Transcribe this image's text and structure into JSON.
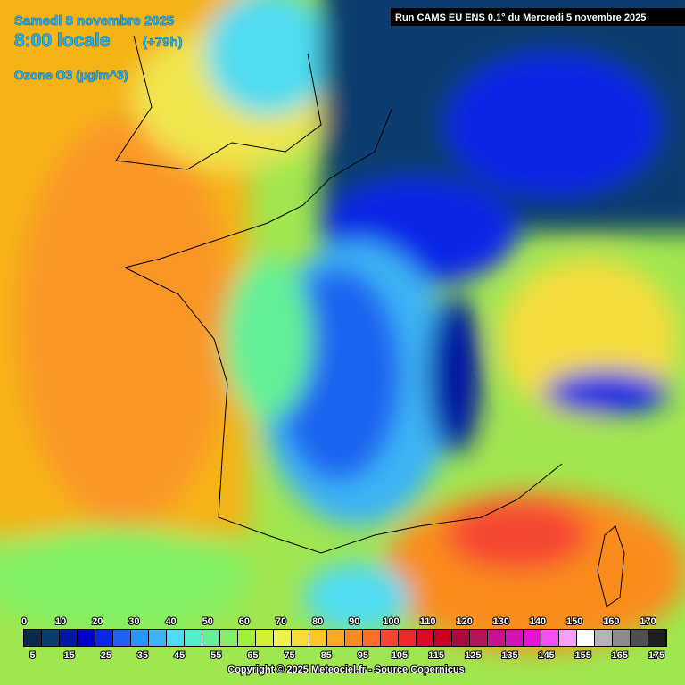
{
  "header": {
    "date": "Samedi 8 novembre 2025",
    "time": "8:00 locale",
    "lead": "(+79h)",
    "variable": "Ozone O3 (µg/m^3)",
    "run": "Run CAMS EU ENS 0.1° du Mercredi 5 novembre 2025"
  },
  "scale": {
    "ticks_top": [
      0,
      10,
      20,
      30,
      40,
      50,
      60,
      70,
      80,
      90,
      100,
      110,
      120,
      130,
      140,
      150,
      160,
      170
    ],
    "ticks_bottom": [
      5,
      15,
      25,
      35,
      45,
      55,
      65,
      75,
      85,
      95,
      105,
      115,
      125,
      135,
      145,
      155,
      165,
      175
    ],
    "colors": [
      "#0a2a4a",
      "#0a3c6e",
      "#0019a0",
      "#0000c8",
      "#0a28e6",
      "#1e64f0",
      "#2896f5",
      "#3cb4f5",
      "#50dcf0",
      "#50f0c8",
      "#64f096",
      "#82f064",
      "#a0f03c",
      "#d2f032",
      "#f0f050",
      "#f5dc3c",
      "#fac828",
      "#faaa1e",
      "#fa8c1e",
      "#fa6e28",
      "#f54632",
      "#f02828",
      "#dc0a1e",
      "#c8001e",
      "#aa0a3c",
      "#b4145a",
      "#c8148c",
      "#d214b4",
      "#e614d2",
      "#f050f0",
      "#f5a0f5",
      "#ffffff",
      "#b4b4b4",
      "#8c8c8c",
      "#505050",
      "#1e1e1e"
    ]
  },
  "footer": "Copyright © 2025 Meteociel.fr - Source Copernicus"
}
